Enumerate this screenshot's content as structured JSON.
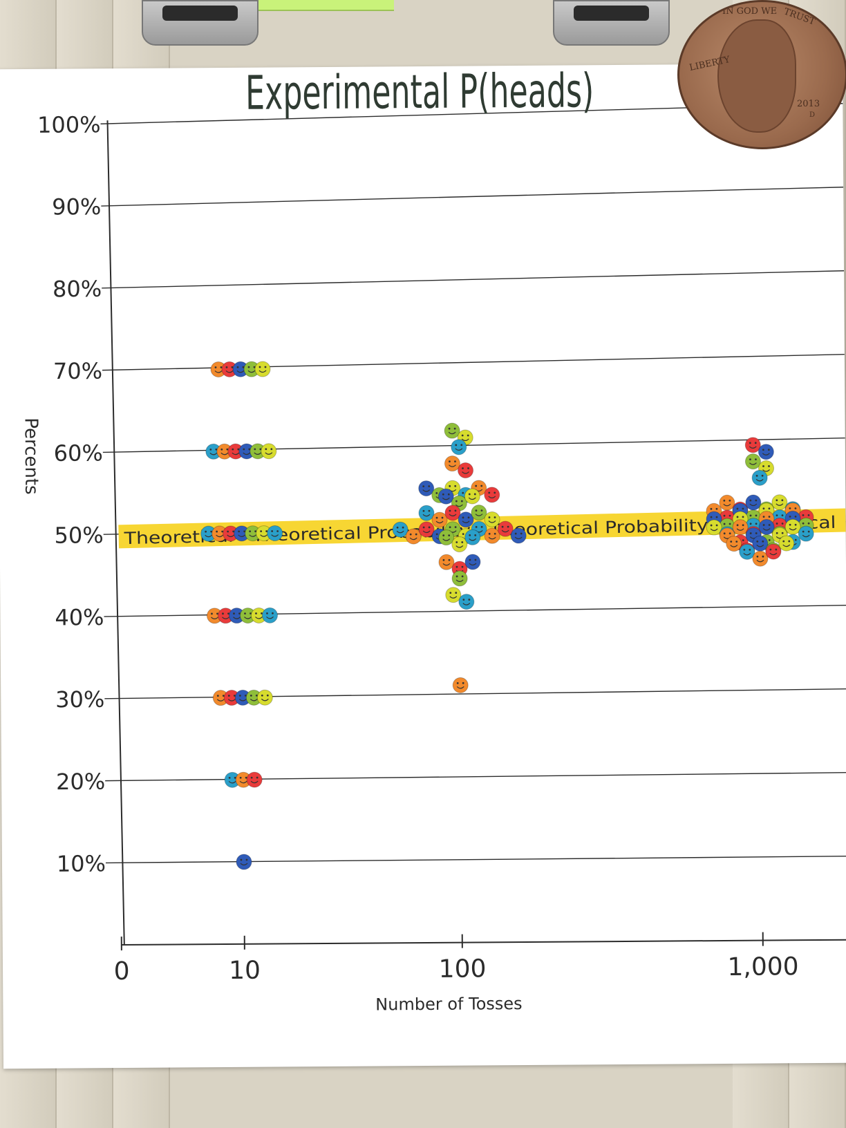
{
  "penny": {
    "liberty": "LIBERTY",
    "trust": "TRUST",
    "year": "2013",
    "mint": "D",
    "top_text": "IN GOD WE"
  },
  "chart_data": {
    "type": "scatter",
    "title": "Experimental P(heads)",
    "xlabel": "Number of Tosses",
    "ylabel": "Percents",
    "x_scale": "log",
    "x_ticks": [
      "0",
      "10",
      "100",
      "1,000"
    ],
    "y_ticks": [
      "100%",
      "90%",
      "80%",
      "70%",
      "60%",
      "50%",
      "40%",
      "30%",
      "20%",
      "10%"
    ],
    "ylim": [
      0,
      100
    ],
    "grid": true,
    "reference_band": {
      "y": 50,
      "text": "Theoretical · Theoretical Probability · Theoretical Probability · Theoretical"
    },
    "marker_colors": [
      "#f28a2c",
      "#e93b3b",
      "#2f5bb8",
      "#8fbe3a",
      "#d7dc2e",
      "#2a9fc9"
    ],
    "series": [
      {
        "x": 10,
        "points": [
          {
            "y": 70,
            "count": 5
          },
          {
            "y": 60,
            "count": 6
          },
          {
            "y": 50,
            "count": 7
          },
          {
            "y": 40,
            "count": 6
          },
          {
            "y": 30,
            "count": 5
          },
          {
            "y": 20,
            "count": 3
          },
          {
            "y": 10,
            "count": 1
          }
        ]
      },
      {
        "x": 100,
        "points": [
          {
            "y": 62,
            "count": 2
          },
          {
            "y": 60,
            "count": 1
          },
          {
            "y": 58,
            "count": 2
          },
          {
            "y": 55,
            "count": 6
          },
          {
            "y": 54,
            "count": 3
          },
          {
            "y": 52,
            "count": 6
          },
          {
            "y": 50,
            "count": 10
          },
          {
            "y": 49,
            "count": 3
          },
          {
            "y": 46,
            "count": 3
          },
          {
            "y": 44,
            "count": 1
          },
          {
            "y": 42,
            "count": 2
          },
          {
            "y": 31,
            "count": 1
          }
        ]
      },
      {
        "x": 1000,
        "points": [
          {
            "y": 60,
            "count": 2
          },
          {
            "y": 58,
            "count": 2
          },
          {
            "y": 56,
            "count": 1
          },
          {
            "y": 53,
            "count": 6
          },
          {
            "y": 52,
            "count": 8
          },
          {
            "y": 51,
            "count": 8
          },
          {
            "y": 50,
            "count": 8
          },
          {
            "y": 49,
            "count": 6
          },
          {
            "y": 48,
            "count": 5
          },
          {
            "y": 47,
            "count": 3
          }
        ]
      }
    ]
  }
}
